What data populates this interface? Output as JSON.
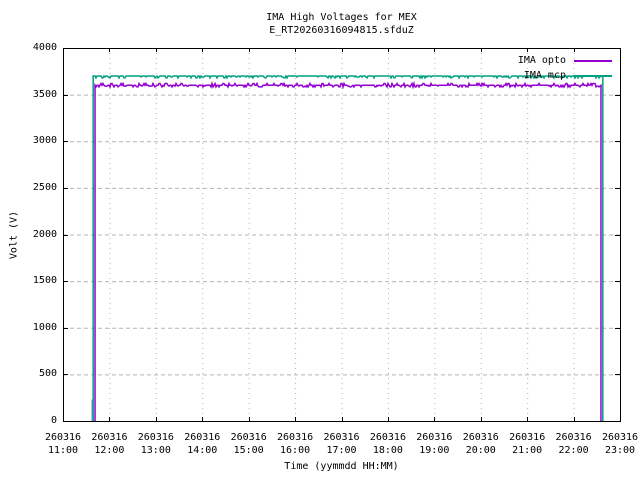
{
  "chart_data": {
    "type": "line",
    "title": "IMA High Voltages for MEX",
    "subtitle": "E_RT20260316094815.sfduZ",
    "xlabel": "Time (yymmdd HH:MM)",
    "ylabel": "Volt (V)",
    "x_tick_date": "260316",
    "x_tick_times": [
      "11:00",
      "12:00",
      "13:00",
      "14:00",
      "15:00",
      "16:00",
      "17:00",
      "18:00",
      "19:00",
      "20:00",
      "21:00",
      "22:00",
      "23:00"
    ],
    "x_range_hours": [
      11,
      23
    ],
    "ylim": [
      0,
      4000
    ],
    "y_ticks": [
      0,
      500,
      1000,
      1500,
      2000,
      2500,
      3000,
      3500,
      4000
    ],
    "grid": true,
    "legend_position": "top-right-inside",
    "series": [
      {
        "name": "IMA opto",
        "color": "#9400D3",
        "steady_level_volts": 3600,
        "noise_amplitude_volts": 20,
        "points_hours_volts": [
          [
            11.69,
            0
          ],
          [
            11.69,
            3600
          ],
          [
            22.59,
            3600
          ],
          [
            22.59,
            0
          ]
        ]
      },
      {
        "name": "IMA mcp",
        "color": "#00A080",
        "steady_level_volts": 3700,
        "noise_amplitude_volts": 15,
        "points_hours_volts": [
          [
            11.65,
            0
          ],
          [
            11.65,
            3700
          ],
          [
            22.63,
            3700
          ],
          [
            22.63,
            0
          ]
        ]
      }
    ],
    "rise_artifact": {
      "color": "#8292D2",
      "hour": 11.63,
      "volts_from": 0,
      "volts_to": 230
    }
  },
  "colors": {
    "axis": "#000000",
    "grid": "#B4B4B4",
    "text": "#000000",
    "background": "#FFFFFF"
  }
}
